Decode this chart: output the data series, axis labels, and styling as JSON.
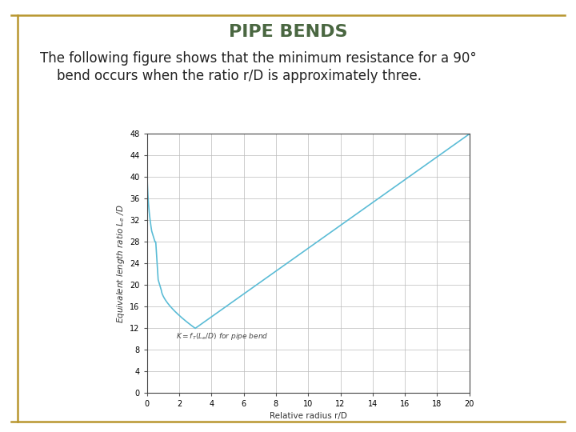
{
  "title": "PIPE BENDS",
  "title_color": "#4a6741",
  "subtitle_line1": "The following figure shows that the minimum resistance for a 90°",
  "subtitle_line2": "    bend occurs when the ratio r/D is approximately three.",
  "subtitle_color": "#222222",
  "background_color": "#ffffff",
  "border_color": "#b8962e",
  "xlabel": "Relative radius r/D",
  "ylabel": "Equivalent length ratio $L_e$ /D",
  "annotation": "$K = f_T(L_e/D)$ for pipe bend",
  "curve_color": "#5bbcd6",
  "xlim": [
    0,
    20
  ],
  "ylim": [
    0,
    48
  ],
  "xticks": [
    0,
    2,
    4,
    6,
    8,
    10,
    12,
    14,
    16,
    18,
    20
  ],
  "yticks": [
    0,
    4,
    8,
    12,
    16,
    20,
    24,
    28,
    32,
    36,
    40,
    44,
    48
  ],
  "title_fontsize": 16,
  "subtitle_fontsize": 12,
  "axis_fontsize": 7,
  "label_fontsize": 7.5
}
